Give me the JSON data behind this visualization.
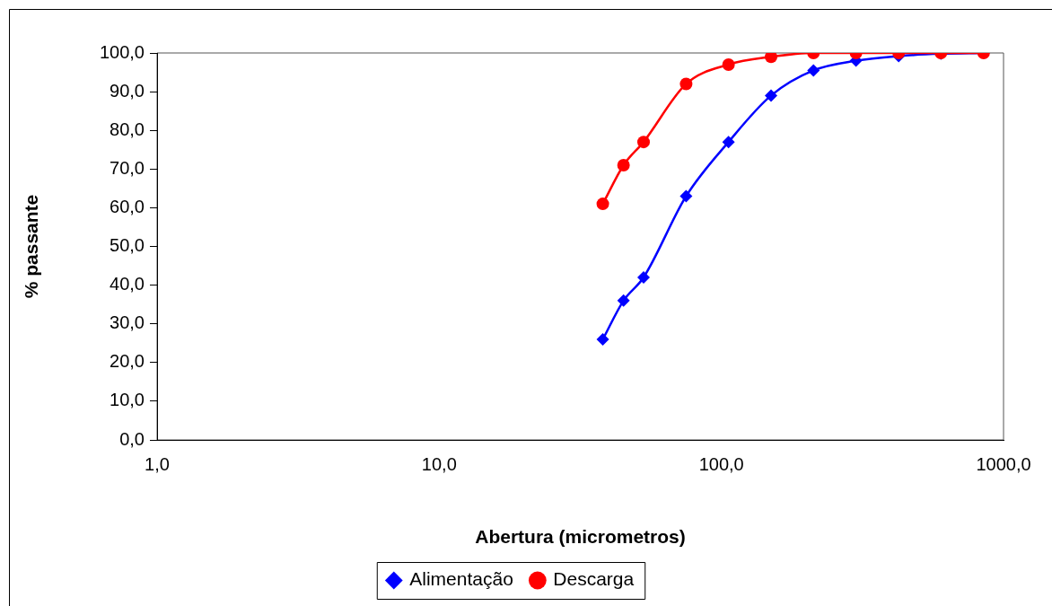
{
  "chart_data": {
    "type": "line",
    "xlabel": "Abertura (micrometros)",
    "ylabel": "% passante",
    "log": "x",
    "xlim": [
      1,
      1000
    ],
    "xticks": [
      {
        "value": 1,
        "label": "1,0"
      },
      {
        "value": 10,
        "label": "10,0"
      },
      {
        "value": 100,
        "label": "100,0"
      },
      {
        "value": 1000,
        "label": "1000,0"
      }
    ],
    "ylim": [
      0,
      100
    ],
    "yticks": [
      {
        "value": 0,
        "label": "0,0"
      },
      {
        "value": 10,
        "label": "10,0"
      },
      {
        "value": 20,
        "label": "20,0"
      },
      {
        "value": 30,
        "label": "30,0"
      },
      {
        "value": 40,
        "label": "40,0"
      },
      {
        "value": 50,
        "label": "50,0"
      },
      {
        "value": 60,
        "label": "60,0"
      },
      {
        "value": 70,
        "label": "70,0"
      },
      {
        "value": 80,
        "label": "80,0"
      },
      {
        "value": 90,
        "label": "90,0"
      },
      {
        "value": 100,
        "label": "100,0"
      }
    ],
    "x": [
      38,
      45,
      53,
      75,
      106,
      150,
      212,
      300,
      425,
      600,
      850
    ],
    "series": [
      {
        "name": "Alimentação",
        "color": "#0000ff",
        "marker": "diamond",
        "values": [
          26,
          36,
          42,
          63,
          77,
          89,
          95.5,
          98,
          99.2,
          99.8,
          100
        ]
      },
      {
        "name": "Descarga",
        "color": "#ff0000",
        "marker": "circle",
        "values": [
          61,
          71,
          77,
          92,
          97,
          99,
          100,
          100,
          100,
          100,
          100
        ]
      }
    ],
    "grid": false,
    "legend": "bottom",
    "line_style": "solid"
  }
}
